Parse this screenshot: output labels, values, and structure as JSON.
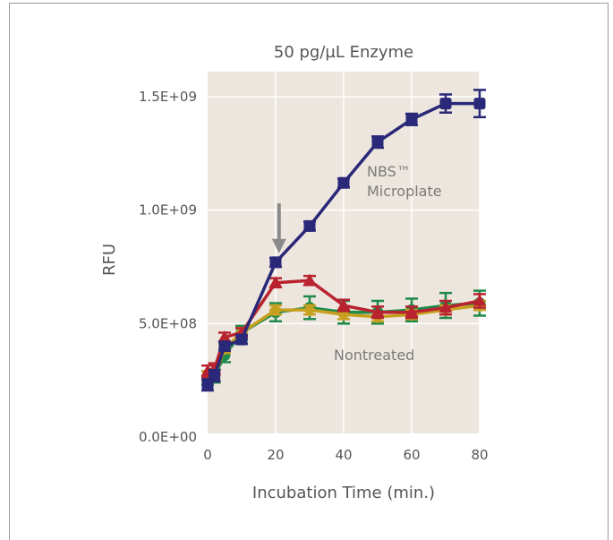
{
  "chart_data": {
    "type": "line",
    "title": "50 pg/µL Enzyme",
    "xlabel": "Incubation Time (min.)",
    "ylabel": "RFU",
    "xlim": [
      0,
      80
    ],
    "ylim": [
      0,
      1500000000
    ],
    "x_ticks": [
      "0",
      "20",
      "40",
      "60",
      "80"
    ],
    "y_ticks": [
      "0.0E+00",
      "5.0E+08",
      "1.0E+09",
      "1.5E+09"
    ],
    "grid": true,
    "colors": {
      "background": "#ede6de",
      "grid": "#ffffff",
      "navy": "#2a2878",
      "red": "#b8232f",
      "green": "#1e8a4a",
      "gold": "#c8a020",
      "arrow": "#8a8a8a"
    },
    "annotations": [
      {
        "lines": [
          "NBS™",
          "Microplate"
        ]
      },
      {
        "lines": [
          "Nontreated"
        ]
      }
    ],
    "arrow_at": {
      "x": 21,
      "y_from": 1030000000,
      "y_to": 810000000
    },
    "series": [
      {
        "color_key": "navy",
        "marker": "square",
        "x": [
          0,
          2,
          5,
          10,
          20,
          30,
          40,
          50,
          60,
          70,
          80
        ],
        "y": [
          230000000,
          270000000,
          400000000,
          430000000,
          770000000,
          930000000,
          1120000000,
          1300000000,
          1400000000,
          1470000000,
          1470000000
        ],
        "err": [
          25000000,
          25000000,
          20000000,
          20000000,
          20000000,
          20000000,
          20000000,
          25000000,
          25000000,
          40000000,
          60000000
        ]
      },
      {
        "color_key": "red",
        "marker": "triangle",
        "x": [
          0,
          2,
          5,
          10,
          20,
          30,
          40,
          50,
          60,
          70,
          80
        ],
        "y": [
          290000000,
          300000000,
          440000000,
          460000000,
          680000000,
          690000000,
          580000000,
          550000000,
          550000000,
          570000000,
          600000000
        ],
        "err": [
          25000000,
          25000000,
          20000000,
          20000000,
          20000000,
          20000000,
          25000000,
          25000000,
          25000000,
          30000000,
          30000000
        ]
      },
      {
        "color_key": "green",
        "marker": "circle",
        "x": [
          0,
          2,
          5,
          10,
          20,
          30,
          40,
          50,
          60,
          70,
          80
        ],
        "y": [
          260000000,
          270000000,
          360000000,
          460000000,
          550000000,
          570000000,
          550000000,
          550000000,
          560000000,
          580000000,
          590000000
        ],
        "err": [
          30000000,
          30000000,
          30000000,
          30000000,
          40000000,
          50000000,
          50000000,
          50000000,
          50000000,
          55000000,
          55000000
        ]
      },
      {
        "color_key": "gold",
        "marker": "diamond",
        "x": [
          0,
          2,
          5,
          10,
          20,
          30,
          40,
          50,
          60,
          70,
          80
        ],
        "y": [
          270000000,
          270000000,
          390000000,
          460000000,
          560000000,
          560000000,
          540000000,
          530000000,
          540000000,
          560000000,
          580000000
        ],
        "err": [
          20000000,
          20000000,
          20000000,
          20000000,
          20000000,
          20000000,
          20000000,
          20000000,
          20000000,
          20000000,
          20000000
        ]
      }
    ]
  }
}
